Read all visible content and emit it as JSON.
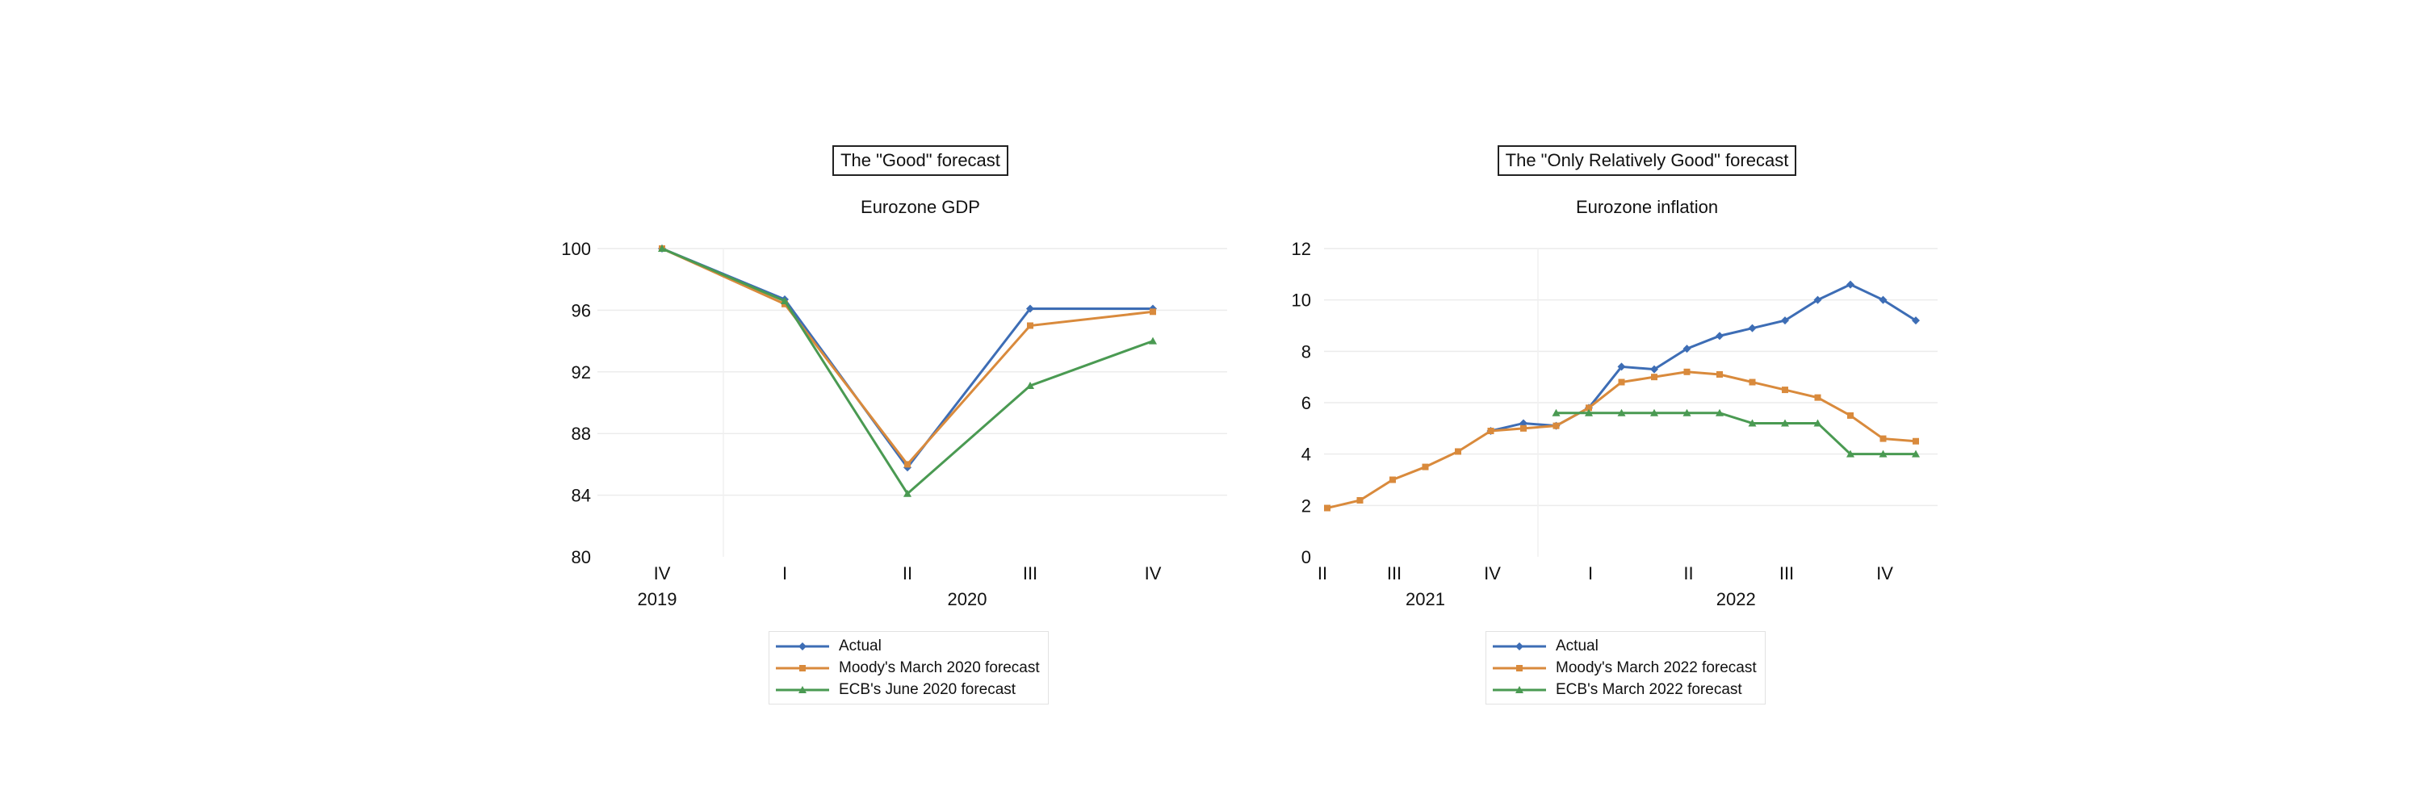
{
  "chart_data": [
    {
      "type": "line",
      "boxed_title": "The \"Good\" forecast",
      "title": "Eurozone GDP",
      "xlabel": "",
      "ylabel": "",
      "ylim": [
        80,
        100
      ],
      "yticks": [
        80,
        84,
        88,
        92,
        96,
        100
      ],
      "grid": true,
      "legend_position": "bottom",
      "categories": [
        "IV",
        "I",
        "II",
        "III",
        "IV"
      ],
      "year_labels": [
        {
          "label": "2019",
          "category_index": 0
        },
        {
          "label": "2020",
          "category_index": 2
        }
      ],
      "series": [
        {
          "name": "Actual",
          "color": "#3d6db5",
          "marker": "diamond",
          "values": [
            100,
            96.7,
            85.8,
            96.1,
            96.1
          ]
        },
        {
          "name": "Moody's March 2020 forecast",
          "color": "#d98a3c",
          "marker": "square",
          "values": [
            100,
            96.4,
            86.0,
            95.0,
            95.9
          ]
        },
        {
          "name": "ECB's June 2020 forecast",
          "color": "#4a9a52",
          "marker": "triangle",
          "values": [
            100,
            96.6,
            84.1,
            91.1,
            94.0
          ]
        }
      ]
    },
    {
      "type": "line",
      "boxed_title": "The \"Only Relatively Good\" forecast",
      "title": "Eurozone inflation",
      "xlabel": "",
      "ylabel": "",
      "ylim": [
        0,
        12
      ],
      "yticks": [
        0,
        2,
        4,
        6,
        8,
        10,
        12
      ],
      "grid": true,
      "legend_position": "bottom",
      "n_points": 19,
      "quarter_labels": [
        {
          "label": "II",
          "index": 0
        },
        {
          "label": "III",
          "index": 2
        },
        {
          "label": "IV",
          "index": 5
        },
        {
          "label": "I",
          "index": 8
        },
        {
          "label": "II",
          "index": 11
        },
        {
          "label": "III",
          "index": 14
        },
        {
          "label": "IV",
          "index": 17
        }
      ],
      "year_labels": [
        {
          "label": "2021",
          "index": 3
        },
        {
          "label": "2022",
          "index": 12.5
        }
      ],
      "series": [
        {
          "name": "Actual",
          "color": "#3d6db5",
          "marker": "diamond",
          "start_index": 5,
          "values": [
            4.9,
            5.2,
            5.1,
            5.8,
            7.4,
            7.3,
            8.1,
            8.6,
            8.9,
            9.2,
            10.0,
            10.6,
            10.0,
            9.2
          ]
        },
        {
          "name": "Moody's March 2022 forecast",
          "color": "#d98a3c",
          "marker": "square",
          "start_index": 0,
          "values": [
            1.9,
            2.2,
            3.0,
            3.5,
            4.1,
            4.9,
            5.0,
            5.1,
            5.8,
            6.8,
            7.0,
            7.2,
            7.1,
            6.8,
            6.5,
            6.2,
            5.5,
            4.6,
            4.5
          ]
        },
        {
          "name": "ECB's March 2022 forecast",
          "color": "#4a9a52",
          "marker": "triangle",
          "start_index": 7,
          "values": [
            5.6,
            5.6,
            5.6,
            5.6,
            5.6,
            5.6,
            5.2,
            5.2,
            5.2,
            4.0,
            4.0,
            4.0
          ]
        }
      ]
    }
  ]
}
